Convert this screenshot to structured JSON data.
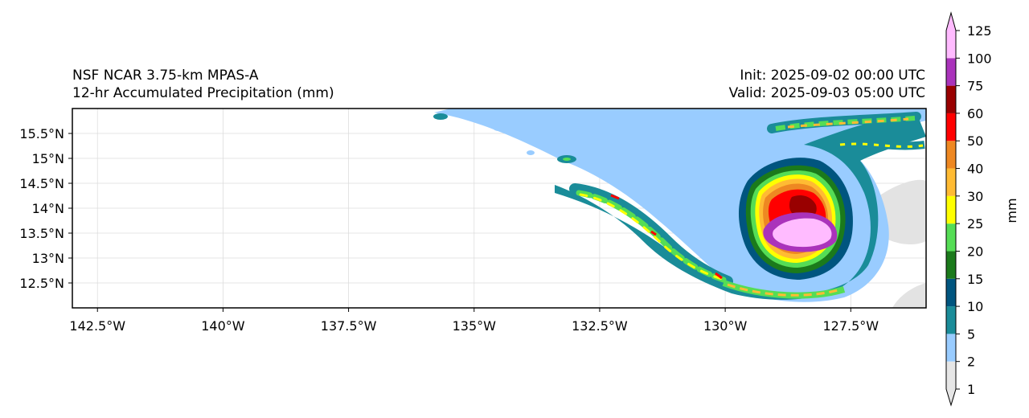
{
  "titles": {
    "left_line1": "NSF NCAR 3.75-km MPAS-A",
    "left_line2": "12-hr Accumulated Precipitation (mm)",
    "right_line1": "Init: 2025-09-02 00:00 UTC",
    "right_line2": "Valid: 2025-09-03 05:00 UTC"
  },
  "map": {
    "lon_range": [
      -143.0,
      -126.0
    ],
    "lat_range": [
      12.0,
      16.0
    ],
    "lon_ticks": [
      {
        "value": -142.5,
        "label": "142.5°W"
      },
      {
        "value": -140.0,
        "label": "140°W"
      },
      {
        "value": -137.5,
        "label": "137.5°W"
      },
      {
        "value": -135.0,
        "label": "135°W"
      },
      {
        "value": -132.5,
        "label": "132.5°W"
      },
      {
        "value": -130.0,
        "label": "130°W"
      },
      {
        "value": -127.5,
        "label": "127.5°W"
      }
    ],
    "lat_ticks": [
      {
        "value": 15.5,
        "label": "15.5°N"
      },
      {
        "value": 15.0,
        "label": "15°N"
      },
      {
        "value": 14.5,
        "label": "14.5°N"
      },
      {
        "value": 14.0,
        "label": "14°N"
      },
      {
        "value": 13.5,
        "label": "13.5°N"
      },
      {
        "value": 13.0,
        "label": "13°N"
      },
      {
        "value": 12.5,
        "label": "12.5°N"
      }
    ]
  },
  "colorbar": {
    "label": "mm",
    "levels": [
      "1",
      "2",
      "5",
      "10",
      "15",
      "20",
      "25",
      "30",
      "40",
      "50",
      "60",
      "75",
      "100",
      "125"
    ],
    "colors": [
      "#e6e6e6",
      "#99ccff",
      "#1a8c99",
      "#00557f",
      "#1b7a1b",
      "#55dd55",
      "#ffff00",
      "#ffbb33",
      "#ee8822",
      "#ff0000",
      "#990000",
      "#aa33bb",
      "#ffbbff"
    ]
  }
}
